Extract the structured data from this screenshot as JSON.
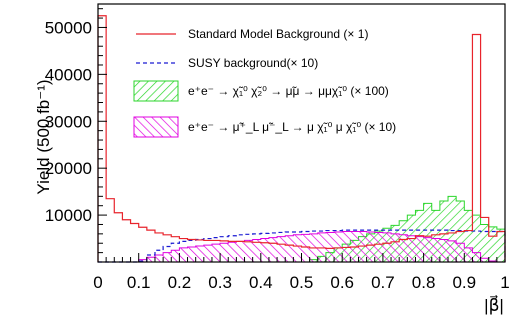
{
  "chart_data": {
    "type": "histogram",
    "title": "",
    "xlabel": "|β⃗|",
    "ylabel": "Yield (500 fb⁻¹)",
    "xlim": [
      0,
      1
    ],
    "ylim": [
      0,
      55000
    ],
    "x_ticks": [
      "0",
      "0.1",
      "0.2",
      "0.3",
      "0.4",
      "0.5",
      "0.6",
      "0.7",
      "0.8",
      "0.9",
      "1"
    ],
    "y_ticks": [
      "10000",
      "20000",
      "30000",
      "40000",
      "50000"
    ],
    "y_tick_values": [
      10000,
      20000,
      30000,
      40000,
      50000
    ],
    "grid": false,
    "legend_position": "top",
    "bin_width": 0.02,
    "colors": {
      "sm": "#e8242c",
      "susy": "#1a1ad2",
      "smuon_pair": "#2bd62b",
      "smuon_lr": "#e000e0"
    },
    "series": [
      {
        "name": "Standard Model Background (× 1)",
        "style": "red-line",
        "values": [
          52500,
          13500,
          10500,
          9000,
          8200,
          7400,
          6800,
          6200,
          5800,
          5400,
          5000,
          4800,
          4700,
          4600,
          4600,
          4500,
          4400,
          4400,
          4300,
          4200,
          4100,
          4000,
          3800,
          3600,
          3400,
          3200,
          3000,
          3000,
          2900,
          3000,
          3100,
          3200,
          3400,
          3600,
          3800,
          4000,
          4300,
          4800,
          5000,
          5600,
          5500,
          5800,
          6000,
          6200,
          6500,
          6700,
          48500,
          9500,
          5500,
          6500
        ]
      },
      {
        "name": "SUSY background(× 10)",
        "style": "blue-dashed",
        "values": [
          0,
          0,
          0,
          0,
          0,
          200,
          1500,
          2500,
          3300,
          4000,
          4400,
          4600,
          4800,
          5000,
          5200,
          5400,
          5600,
          5800,
          5900,
          6000,
          6100,
          6200,
          6300,
          6400,
          6400,
          6500,
          6600,
          6600,
          6700,
          6700,
          6800,
          6800,
          6800,
          6800,
          6800,
          6800,
          6800,
          6800,
          6800,
          6800,
          6800,
          6800,
          6800,
          6700,
          6700,
          6600,
          6600,
          6500,
          6500,
          6500
        ]
      },
      {
        "name": "e⁺e⁻ → χ̃₁⁰ χ̃₂⁰ → μ̃μ → μμχ̃₁⁰ (× 100)",
        "style": "green-hatch",
        "values": [
          0,
          0,
          0,
          0,
          0,
          0,
          0,
          0,
          0,
          0,
          0,
          0,
          0,
          0,
          0,
          0,
          0,
          0,
          0,
          0,
          0,
          0,
          0,
          0,
          0,
          0,
          500,
          1200,
          2000,
          3000,
          3800,
          4600,
          5400,
          6000,
          6600,
          7200,
          7800,
          8800,
          10000,
          11000,
          12500,
          11000,
          13000,
          14000,
          13000,
          11000,
          10000,
          8000,
          7500,
          7000
        ]
      },
      {
        "name": "e⁺e⁻ → μ̃⁺_L μ̃⁻_L → μ χ̃₁⁰ μ χ̃₁⁰ (× 10)",
        "style": "magenta-hatch",
        "values": [
          0,
          0,
          0,
          0,
          0,
          500,
          1000,
          1500,
          2000,
          2500,
          3000,
          3200,
          3400,
          3600,
          3800,
          4000,
          4200,
          4400,
          4600,
          4800,
          5000,
          5200,
          5400,
          5600,
          5800,
          5900,
          6000,
          6200,
          6300,
          6400,
          6500,
          6500,
          6500,
          6400,
          6300,
          6200,
          6000,
          5800,
          5600,
          5400,
          5200,
          5000,
          4800,
          4500,
          4000,
          3000,
          2000,
          800,
          200,
          0
        ]
      }
    ]
  }
}
